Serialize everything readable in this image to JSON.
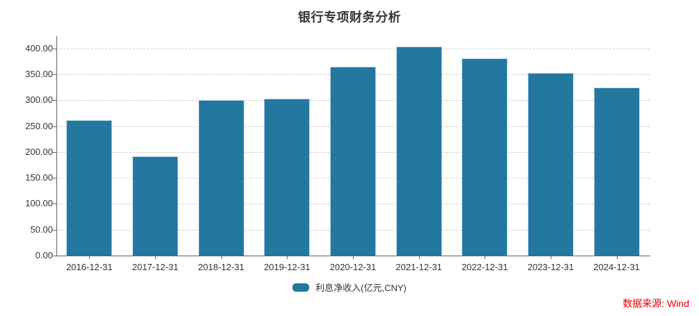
{
  "title": "银行专项财务分析",
  "legend": {
    "label": "利息净收入(亿元,CNY)",
    "swatch_color": "#2478a0"
  },
  "source": {
    "label": "数据来源: Wind",
    "color": "#e60000"
  },
  "chart_data": {
    "type": "bar",
    "title": "银行专项财务分析",
    "categories": [
      "2016-12-31",
      "2017-12-31",
      "2018-12-31",
      "2019-12-31",
      "2020-12-31",
      "2021-12-31",
      "2022-12-31",
      "2023-12-31",
      "2024-12-31"
    ],
    "series": [
      {
        "name": "利息净收入(亿元,CNY)",
        "color": "#2478a0",
        "border_color": "#b9d8e8",
        "values": [
          261,
          192,
          300,
          303,
          364,
          404,
          381,
          352,
          325
        ]
      }
    ],
    "xlabel": "",
    "ylabel": "",
    "ylim": [
      0,
      400
    ],
    "ytick_step": 50,
    "ytick_decimals": 2,
    "grid": "horizontal-dashed",
    "legend_position": "bottom"
  }
}
